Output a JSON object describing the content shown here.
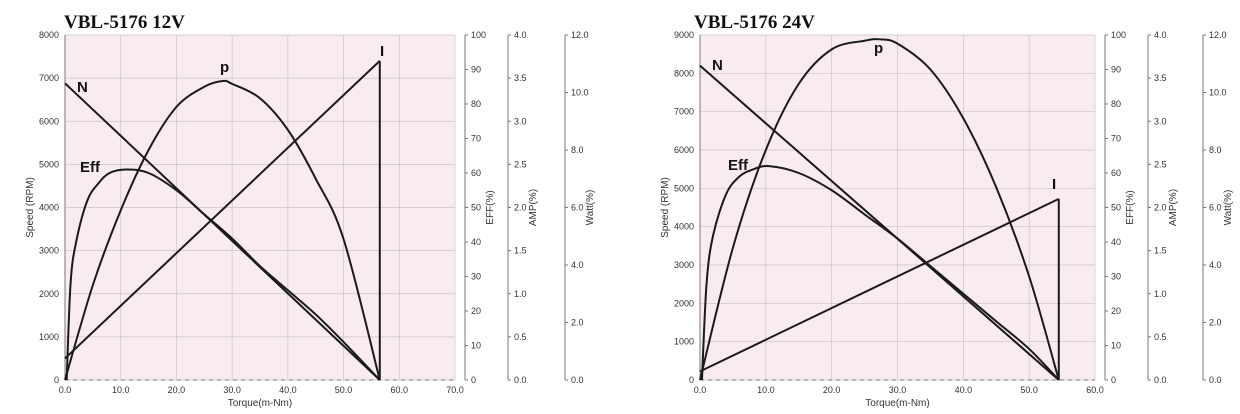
{
  "chart_data": [
    {
      "type": "line",
      "title": "VBL-5176   12V",
      "xlabel": "Torque(m-Nm)",
      "xlim": [
        0,
        70
      ],
      "xticks": [
        "0.0",
        "10.0",
        "20.0",
        "30.0",
        "40.0",
        "50.0",
        "60.0",
        "70.0"
      ],
      "grid": true,
      "axes": {
        "speed": {
          "label": "Speed (RPM)",
          "ylim": [
            0,
            8000
          ],
          "ticks": [
            "0",
            "1000",
            "2000",
            "3000",
            "4000",
            "5000",
            "6000",
            "7000",
            "8000"
          ]
        },
        "eff": {
          "label": "EFF(%)",
          "ylim": [
            0,
            100
          ],
          "ticks": [
            "0",
            "10",
            "20",
            "30",
            "40",
            "50",
            "60",
            "70",
            "80",
            "90",
            "100"
          ]
        },
        "amp": {
          "label": "AMP(%)",
          "ylim": [
            0,
            4
          ],
          "ticks": [
            "0.0",
            "0.5",
            "1.0",
            "1.5",
            "2.0",
            "2.5",
            "3.0",
            "3.5",
            "4.0"
          ]
        },
        "watt": {
          "label": "Watt(%)",
          "ylim": [
            0,
            12
          ],
          "ticks": [
            "0.0",
            "2.0",
            "4.0",
            "6.0",
            "8.0",
            "10.0",
            "12.0"
          ]
        }
      },
      "series": [
        {
          "name": "N",
          "axis": "speed",
          "x": [
            0,
            56.5
          ],
          "y": [
            6880,
            0
          ]
        },
        {
          "name": "I",
          "axis": "amp",
          "x": [
            0,
            56.5
          ],
          "y": [
            0.25,
            3.7
          ]
        },
        {
          "name": "p",
          "axis": "watt",
          "x": [
            0,
            5,
            10,
            15,
            20,
            25,
            28.3,
            30,
            35,
            40,
            45,
            50,
            56.5
          ],
          "y": [
            0,
            3.3,
            5.9,
            8.0,
            9.5,
            10.2,
            10.4,
            10.3,
            9.8,
            8.7,
            7.0,
            4.9,
            0
          ]
        },
        {
          "name": "Eff",
          "axis": "eff",
          "x": [
            0.3,
            1,
            2,
            4,
            6,
            8,
            11,
            15,
            20,
            25,
            30,
            35,
            40,
            45,
            50,
            56.5
          ],
          "y": [
            0,
            28,
            40,
            52,
            57,
            60,
            61,
            60,
            55,
            48,
            41,
            33,
            26,
            19,
            11,
            0
          ]
        }
      ],
      "labels": [
        {
          "text": "N",
          "series": "N"
        },
        {
          "text": "p",
          "series": "p"
        },
        {
          "text": "Eff",
          "series": "Eff"
        },
        {
          "text": "I",
          "series": "I"
        }
      ]
    },
    {
      "type": "line",
      "title": "VBL-5176   24V",
      "xlabel": "Torque(m-Nm)",
      "xlim": [
        0,
        60
      ],
      "xticks": [
        "0.0",
        "10.0",
        "20.0",
        "30.0",
        "40.0",
        "50.0",
        "60.0"
      ],
      "grid": true,
      "axes": {
        "speed": {
          "label": "Speed (RPM)",
          "ylim": [
            0,
            9000
          ],
          "ticks": [
            "0",
            "1000",
            "2000",
            "3000",
            "4000",
            "5000",
            "6000",
            "7000",
            "8000",
            "9000"
          ]
        },
        "eff": {
          "label": "EFF(%)",
          "ylim": [
            0,
            100
          ],
          "ticks": [
            "0",
            "10",
            "20",
            "30",
            "40",
            "50",
            "60",
            "70",
            "80",
            "90",
            "100"
          ]
        },
        "amp": {
          "label": "AMP(%)",
          "ylim": [
            0,
            4
          ],
          "ticks": [
            "0.0",
            "0.5",
            "1.0",
            "1.5",
            "2.0",
            "2.5",
            "3.0",
            "3.5",
            "4.0"
          ]
        },
        "watt": {
          "label": "Watt(%)",
          "ylim": [
            0,
            12
          ],
          "ticks": [
            "0.0",
            "2.0",
            "4.0",
            "6.0",
            "8.0",
            "10.0",
            "12.0"
          ]
        }
      },
      "series": [
        {
          "name": "N",
          "axis": "speed",
          "x": [
            0,
            54.5
          ],
          "y": [
            8200,
            0
          ]
        },
        {
          "name": "I",
          "axis": "amp",
          "x": [
            0,
            54.5
          ],
          "y": [
            0.1,
            2.1
          ]
        },
        {
          "name": "p",
          "axis": "watt",
          "x": [
            0,
            5,
            10,
            15,
            20,
            25,
            27.3,
            30,
            35,
            40,
            45,
            50,
            54.5
          ],
          "y": [
            0,
            4.6,
            8.0,
            10.3,
            11.5,
            11.8,
            11.85,
            11.7,
            10.8,
            9.1,
            6.7,
            3.6,
            0
          ]
        },
        {
          "name": "Eff",
          "axis": "eff",
          "x": [
            0.3,
            1,
            2,
            4,
            6,
            8,
            10.5,
            15,
            20,
            25,
            30,
            35,
            40,
            45,
            50,
            54.5
          ],
          "y": [
            0,
            28,
            42,
            54,
            59,
            61,
            62,
            60,
            55,
            48,
            41,
            33,
            25,
            17,
            9,
            0
          ]
        }
      ],
      "labels": [
        {
          "text": "N",
          "series": "N"
        },
        {
          "text": "p",
          "series": "p"
        },
        {
          "text": "Eff",
          "series": "Eff"
        },
        {
          "text": "I",
          "series": "I"
        }
      ]
    }
  ],
  "colors": {
    "plot_background": "#f9ecee",
    "grid": "#c9c3c6",
    "curve": "#1a1a1a"
  }
}
